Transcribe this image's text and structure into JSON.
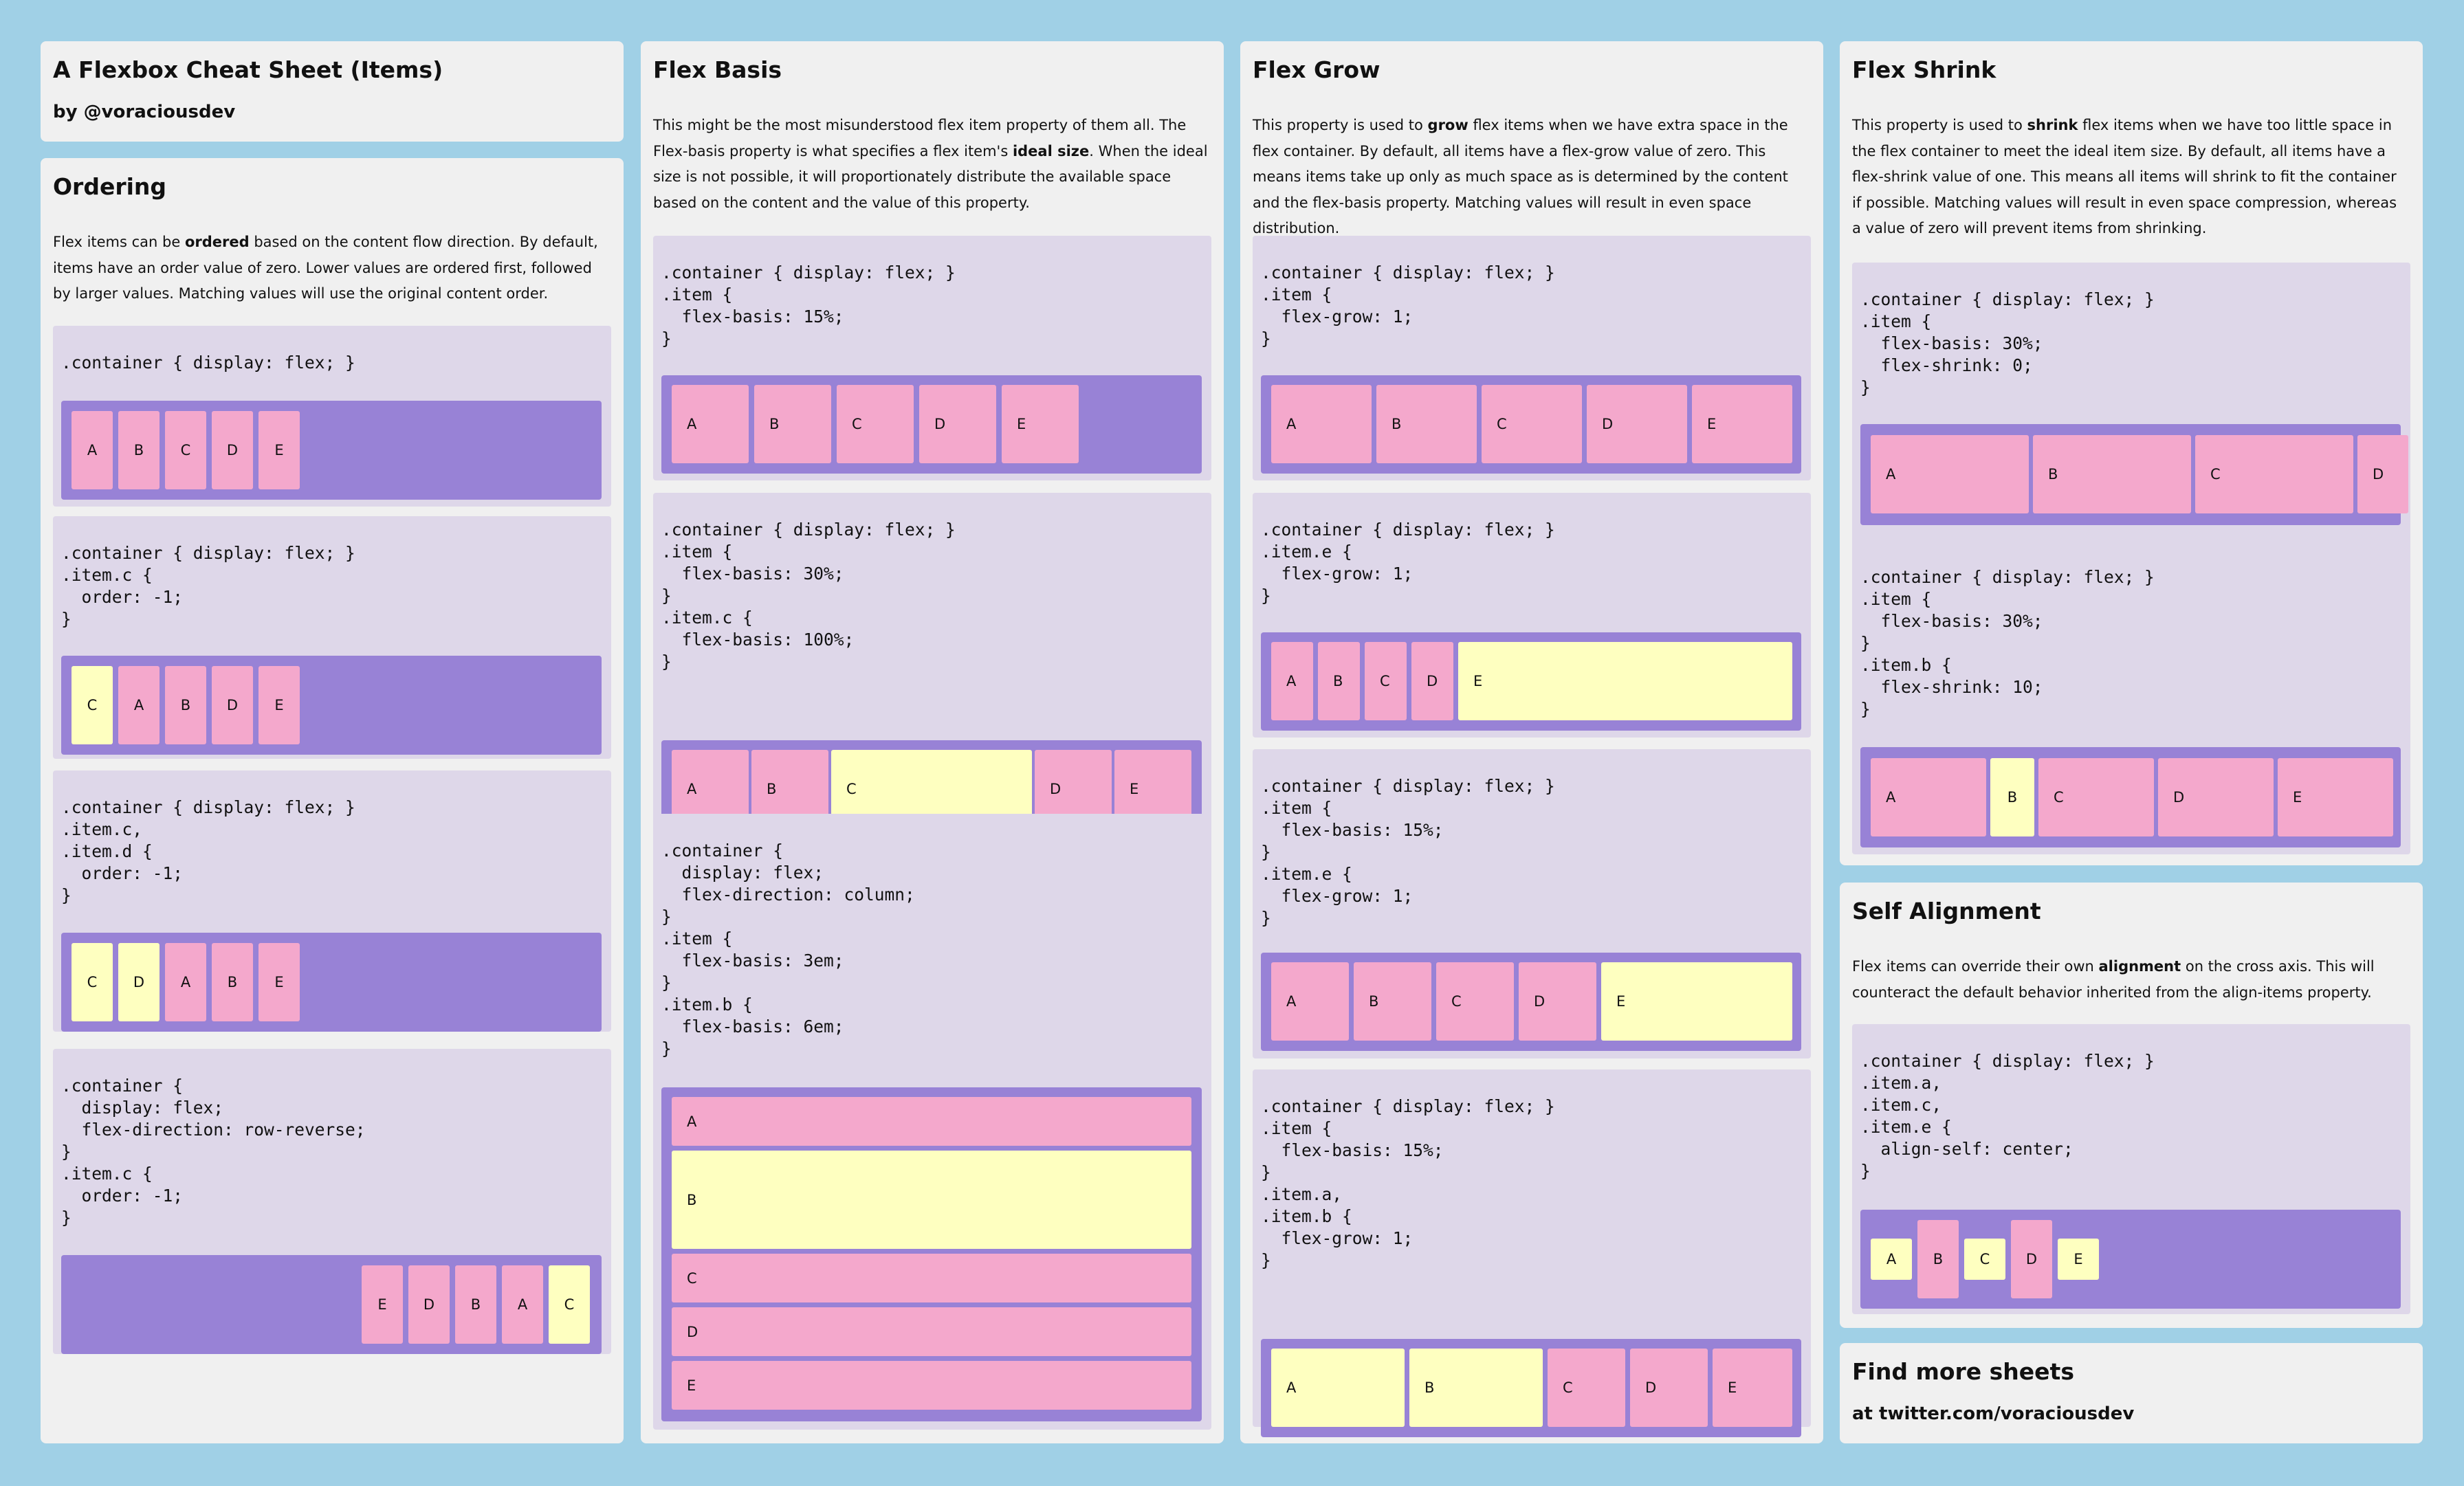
{
  "header": {
    "title": "A Flexbox Cheat Sheet (Items)",
    "author": "by @voraciousdev"
  },
  "ordering": {
    "title": "Ordering",
    "p1": "Flex items can be ",
    "bold": "ordered",
    "p2": " based on the content flow direction. By default, items have an order value of zero. Lower values are ordered first, followed by larger values. Matching values will use the original content order.",
    "ex1": {
      "code": ".container { display: flex; }",
      "items": [
        "A",
        "B",
        "C",
        "D",
        "E"
      ]
    },
    "ex2": {
      "code": ".container { display: flex; }\n.item.c {\n  order: -1;\n}",
      "items": [
        "C",
        "A",
        "B",
        "D",
        "E"
      ]
    },
    "ex3": {
      "code": ".container { display: flex; }\n.item.c,\n.item.d {\n  order: -1;\n}",
      "items": [
        "C",
        "D",
        "A",
        "B",
        "E"
      ]
    },
    "ex4": {
      "code": ".container {\n  display: flex;\n  flex-direction: row-reverse;\n}\n.item.c {\n  order: -1;\n}",
      "items": [
        "E",
        "D",
        "B",
        "A",
        "C"
      ]
    }
  },
  "basis": {
    "title": "Flex Basis",
    "p1": "This might be the most misunderstood flex item property of them all. The Flex-basis property is what specifies a flex item's ",
    "bold": "ideal size",
    "p2": ". When the ideal size is not possible, it will proportionately distribute the available space based on the content and the value of this property.",
    "ex1": {
      "code": ".container { display: flex; }\n.item {\n  flex-basis: 15%;\n}",
      "items": [
        "A",
        "B",
        "C",
        "D",
        "E"
      ]
    },
    "ex2": {
      "code": ".container { display: flex; }\n.item {\n  flex-basis: 30%;\n}\n.item.c {\n  flex-basis: 100%;\n}",
      "items": [
        "A",
        "B",
        "C",
        "D",
        "E"
      ]
    },
    "ex3": {
      "code": ".container {\n  display: flex;\n  flex-direction: column;\n}\n.item {\n  flex-basis: 3em;\n}\n.item.b {\n  flex-basis: 6em;\n}",
      "items": [
        "A",
        "B",
        "C",
        "D",
        "E"
      ]
    }
  },
  "grow": {
    "title": "Flex Grow",
    "p1": "This property is used to ",
    "bold": "grow",
    "p2": " flex items when we have extra space in the flex container. By default, all items have a flex-grow value of zero. This means items take up only as much space as is determined by the content and the flex-basis property. Matching values will result in even space distribution.",
    "ex1": {
      "code": ".container { display: flex; }\n.item {\n  flex-grow: 1;\n}",
      "items": [
        "A",
        "B",
        "C",
        "D",
        "E"
      ]
    },
    "ex2": {
      "code": ".container { display: flex; }\n.item.e {\n  flex-grow: 1;\n}",
      "items": [
        "A",
        "B",
        "C",
        "D",
        "E"
      ]
    },
    "ex3": {
      "code": ".container { display: flex; }\n.item {\n  flex-basis: 15%;\n}\n.item.e {\n  flex-grow: 1;\n}",
      "items": [
        "A",
        "B",
        "C",
        "D",
        "E"
      ]
    },
    "ex4": {
      "code": ".container { display: flex; }\n.item {\n  flex-basis: 15%;\n}\n.item.a,\n.item.b {\n  flex-grow: 1;\n}",
      "items": [
        "A",
        "B",
        "C",
        "D",
        "E"
      ]
    }
  },
  "shrink": {
    "title": "Flex Shrink",
    "p1": "This property is used to ",
    "bold": "shrink",
    "p2": " flex items when we have too little space in the flex container to meet the ideal item size. By default, all items have a flex-shrink value of one. This means all items will shrink to fit the container if possible. Matching values will result in even space compression, whereas a value of zero will prevent items from shrinking.",
    "ex1": {
      "code": ".container { display: flex; }\n.item {\n  flex-basis: 30%;\n  flex-shrink: 0;\n}",
      "items": [
        "A",
        "B",
        "C",
        "D"
      ]
    },
    "ex2": {
      "code": ".container { display: flex; }\n.item {\n  flex-basis: 30%;\n}\n.item.b {\n  flex-shrink: 10;\n}",
      "items": [
        "A",
        "B",
        "C",
        "D",
        "E"
      ]
    }
  },
  "self": {
    "title": "Self Alignment",
    "p1": "Flex items can override their own ",
    "bold": "alignment",
    "p2": " on the cross axis. This will counteract the default behavior inherited from the align-items property.",
    "ex1": {
      "code": ".container { display: flex; }\n.item.a,\n.item.c,\n.item.e {\n  align-self: center;\n}",
      "items": [
        "A",
        "B",
        "C",
        "D",
        "E"
      ]
    }
  },
  "more": {
    "title": "Find more sheets",
    "link": "at twitter.com/voraciousdev"
  },
  "colors": {
    "background": "#a0d0e6",
    "card": "#f0f0f0",
    "code_block": "#ded7e9",
    "container": "#9882d6",
    "item": "#f4a8cc",
    "item_highlight": "#feffc0"
  }
}
